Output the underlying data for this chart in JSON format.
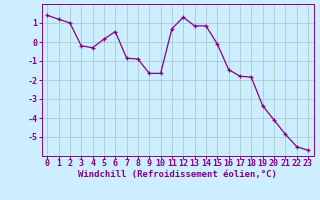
{
  "x": [
    0,
    1,
    2,
    3,
    4,
    5,
    6,
    7,
    8,
    9,
    10,
    11,
    12,
    13,
    14,
    15,
    16,
    17,
    18,
    19,
    20,
    21,
    22,
    23
  ],
  "y": [
    1.4,
    1.2,
    1.0,
    -0.2,
    -0.3,
    0.15,
    0.55,
    -0.85,
    -0.9,
    -1.65,
    -1.65,
    0.7,
    1.3,
    0.85,
    0.85,
    -0.1,
    -1.45,
    -1.8,
    -1.85,
    -3.35,
    -4.1,
    -4.85,
    -5.5,
    -5.7
  ],
  "line_color": "#880088",
  "marker": "+",
  "bg_color": "#cceeff",
  "grid_color": "#aacccc",
  "axis_color": "#880088",
  "xlabel": "Windchill (Refroidissement éolien,°C)",
  "ylabel": "",
  "xlim": [
    -0.5,
    23.5
  ],
  "ylim": [
    -6.0,
    2.0
  ],
  "yticks": [
    1,
    0,
    -1,
    -2,
    -3,
    -4,
    -5
  ],
  "xticks": [
    0,
    1,
    2,
    3,
    4,
    5,
    6,
    7,
    8,
    9,
    10,
    11,
    12,
    13,
    14,
    15,
    16,
    17,
    18,
    19,
    20,
    21,
    22,
    23
  ],
  "label_fontsize": 6.5,
  "tick_fontsize": 6.0,
  "linewidth": 0.9,
  "markersize": 3.5
}
